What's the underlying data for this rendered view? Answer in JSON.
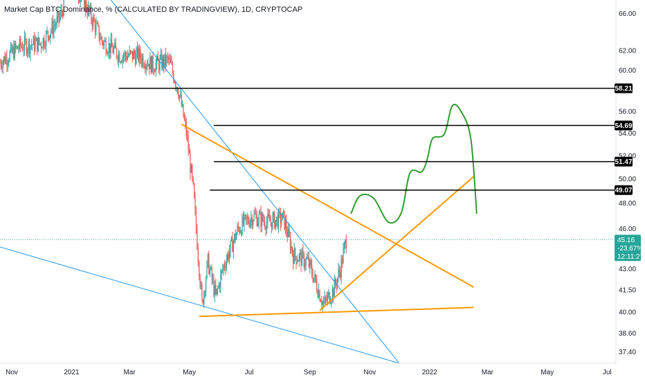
{
  "header": {
    "title": "Market Cap BTC Dominance, % (CALCULATED BY TRADINGVIEW), 1D, CRYPTOCAP"
  },
  "colors": {
    "up": "#26a69a",
    "down": "#ef5350",
    "price_line": "#26a69a",
    "level_line": "#000000",
    "orange": "#ff9800",
    "blue": "#2196f3",
    "green": "#2e9e2e",
    "axis_text": "#131722",
    "tag_bg": "#000000",
    "price_tag_bg": "#26a69a"
  },
  "chart_data": {
    "type": "candlestick",
    "title": "Market Cap BTC Dominance, % (CALCULATED BY TRADINGVIEW), 1D, CRYPTOCAP",
    "x_axis": {
      "type": "time",
      "tick_labels": [
        "Nov",
        "2021",
        "Mar",
        "May",
        "Jul",
        "Sep",
        "Nov",
        "2022",
        "Mar",
        "May",
        "Jul"
      ],
      "tick_dates": [
        "2020-11-01",
        "2021-01-01",
        "2021-03-01",
        "2021-05-01",
        "2021-07-01",
        "2021-09-01",
        "2021-11-01",
        "2022-01-01",
        "2022-03-01",
        "2022-05-01",
        "2022-07-01"
      ],
      "range": [
        "2020-10-20",
        "2022-07-10"
      ]
    },
    "y_axis": {
      "scale": "log",
      "tick_labels": [
        "37.40",
        "38.60",
        "40.00",
        "41.50",
        "43.00",
        "46.00",
        "48.00",
        "50.00",
        "52.00",
        "54.00",
        "56.00",
        "60.00",
        "62.00",
        "66.00"
      ],
      "ticks": [
        37.4,
        38.6,
        40.0,
        41.5,
        43.0,
        46.0,
        48.0,
        50.0,
        52.0,
        54.0,
        56.0,
        60.0,
        62.0,
        66.0
      ],
      "range": [
        36.7,
        67.5
      ],
      "position": "right"
    },
    "anchors": [
      [
        "2020-10-20",
        60.8
      ],
      [
        "2020-11-10",
        62.5
      ],
      [
        "2020-12-01",
        62.8
      ],
      [
        "2020-12-20",
        65.5
      ],
      [
        "2021-01-01",
        70.0
      ],
      [
        "2021-01-15",
        67.0
      ],
      [
        "2021-02-01",
        63.0
      ],
      [
        "2021-02-20",
        61.5
      ],
      [
        "2021-03-10",
        61.5
      ],
      [
        "2021-03-25",
        60.5
      ],
      [
        "2021-04-10",
        61.0
      ],
      [
        "2021-04-20",
        58.0
      ],
      [
        "2021-04-28",
        54.0
      ],
      [
        "2021-05-05",
        49.0
      ],
      [
        "2021-05-10",
        44.0
      ],
      [
        "2021-05-14",
        40.5
      ],
      [
        "2021-05-20",
        43.5
      ],
      [
        "2021-05-28",
        41.0
      ],
      [
        "2021-06-05",
        43.2
      ],
      [
        "2021-06-20",
        46.0
      ],
      [
        "2021-07-05",
        47.0
      ],
      [
        "2021-07-20",
        46.5
      ],
      [
        "2021-08-05",
        46.8
      ],
      [
        "2021-08-15",
        44.0
      ],
      [
        "2021-08-30",
        43.5
      ],
      [
        "2021-09-08",
        41.8
      ],
      [
        "2021-09-15",
        40.5
      ],
      [
        "2021-09-25",
        41.5
      ],
      [
        "2021-10-02",
        43.0
      ],
      [
        "2021-10-08",
        45.16
      ]
    ],
    "last_price": 45.16,
    "last_change": "-23.67%",
    "countdown": "12:11:27",
    "price_levels": [
      {
        "label": "58.21",
        "value": 58.21,
        "from": "2021-02-18"
      },
      {
        "label": "54.69",
        "value": 54.69,
        "from": "2021-05-26"
      },
      {
        "label": "51.47",
        "value": 51.47,
        "from": "2021-05-26"
      },
      {
        "label": "49.07",
        "value": 49.07,
        "from": "2021-05-22"
      }
    ],
    "drawings": {
      "orange_lines": [
        {
          "from": [
            "2021-04-23",
            54.8
          ],
          "to": [
            "2022-02-15",
            41.7
          ]
        },
        {
          "from": [
            "2021-05-11",
            39.7
          ],
          "to": [
            "2022-02-15",
            40.3
          ]
        },
        {
          "from": [
            "2021-09-11",
            40.1
          ],
          "to": [
            "2022-02-15",
            50.2
          ]
        }
      ],
      "blue_lines": [
        {
          "from": [
            "2021-01-10",
            72.0
          ],
          "to": [
            "2021-12-01",
            36.7
          ]
        },
        {
          "from": [
            "2020-10-20",
            44.6
          ],
          "to": [
            "2021-12-01",
            36.7
          ]
        }
      ],
      "green_projection": [
        [
          "2021-10-13",
          47.2
        ],
        [
          "2021-10-22",
          48.6
        ],
        [
          "2021-11-05",
          48.4
        ],
        [
          "2021-11-20",
          46.5
        ],
        [
          "2021-12-03",
          47.2
        ],
        [
          "2021-12-12",
          50.5
        ],
        [
          "2021-12-24",
          50.6
        ],
        [
          "2021-12-30",
          51.8
        ],
        [
          "2022-01-04",
          53.5
        ],
        [
          "2022-01-16",
          53.9
        ],
        [
          "2022-01-24",
          56.5
        ],
        [
          "2022-02-02",
          56.0
        ],
        [
          "2022-02-12",
          53.5
        ],
        [
          "2022-02-18",
          47.2
        ]
      ]
    }
  }
}
